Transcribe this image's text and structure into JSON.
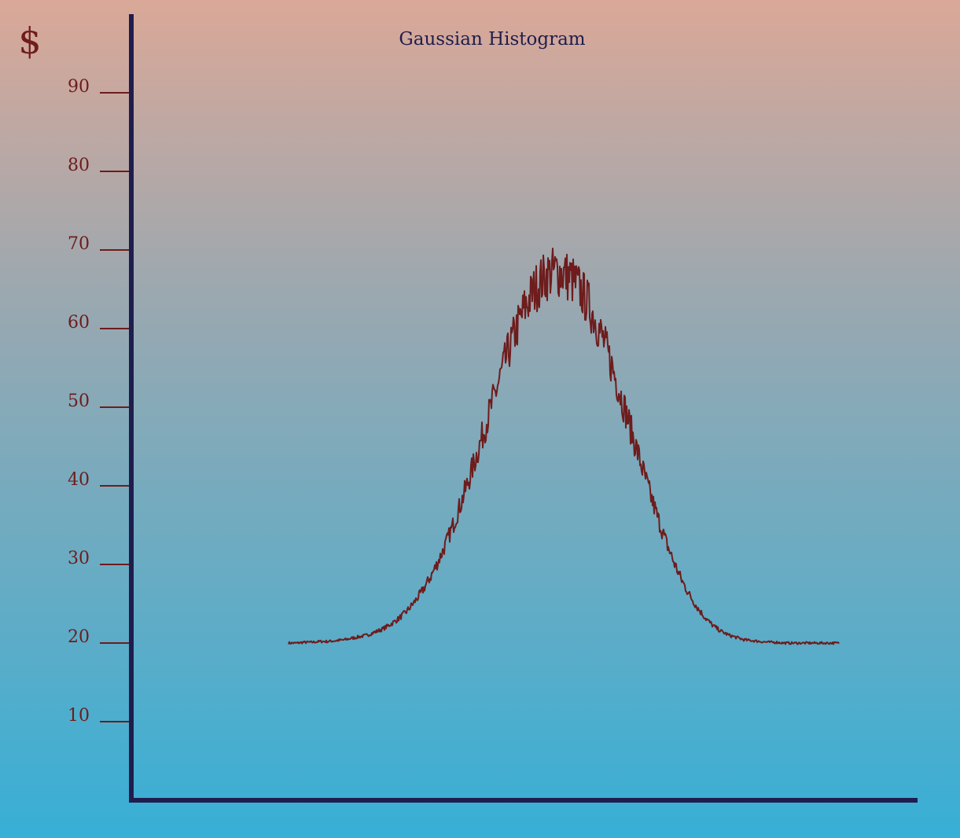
{
  "chart_data": {
    "type": "line",
    "title": "Gaussian Histogram",
    "ylabel": "$",
    "xlabel": "",
    "ylim": [
      0,
      100
    ],
    "yticks": [
      10,
      20,
      30,
      40,
      50,
      60,
      70,
      80,
      90
    ],
    "xlim": [
      0,
      1000
    ],
    "grid": false,
    "legend": "none",
    "series": [
      {
        "baseline": 20,
        "peak": 67,
        "x_range": [
          200,
          900
        ],
        "peak_x": 550,
        "points": [
          [
            200,
            20.0
          ],
          [
            210,
            20.0
          ],
          [
            220,
            20.1
          ],
          [
            230,
            20.1
          ],
          [
            240,
            20.2
          ],
          [
            250,
            20.2
          ],
          [
            260,
            20.3
          ],
          [
            270,
            20.4
          ],
          [
            280,
            20.6
          ],
          [
            290,
            20.8
          ],
          [
            300,
            21.0
          ],
          [
            310,
            21.4
          ],
          [
            320,
            21.8
          ],
          [
            330,
            22.4
          ],
          [
            340,
            23.1
          ],
          [
            350,
            24.0
          ],
          [
            360,
            25.2
          ],
          [
            370,
            26.6
          ],
          [
            380,
            28.3
          ],
          [
            390,
            30.3
          ],
          [
            400,
            32.6
          ],
          [
            410,
            35.2
          ],
          [
            420,
            38.0
          ],
          [
            430,
            41.0
          ],
          [
            440,
            44.2
          ],
          [
            450,
            47.5
          ],
          [
            460,
            50.8
          ],
          [
            470,
            54.1
          ],
          [
            480,
            57.2
          ],
          [
            490,
            60.0
          ],
          [
            500,
            62.5
          ],
          [
            510,
            64.5
          ],
          [
            520,
            66.0
          ],
          [
            530,
            66.9
          ],
          [
            540,
            67.3
          ],
          [
            550,
            67.0
          ],
          [
            560,
            66.3
          ],
          [
            570,
            65.1
          ],
          [
            580,
            63.4
          ],
          [
            590,
            61.2
          ],
          [
            600,
            58.6
          ],
          [
            610,
            55.6
          ],
          [
            620,
            52.4
          ],
          [
            630,
            49.0
          ],
          [
            640,
            45.6
          ],
          [
            650,
            42.2
          ],
          [
            660,
            38.9
          ],
          [
            670,
            35.8
          ],
          [
            680,
            32.9
          ],
          [
            690,
            30.3
          ],
          [
            700,
            28.0
          ],
          [
            710,
            26.1
          ],
          [
            720,
            24.5
          ],
          [
            730,
            23.2
          ],
          [
            740,
            22.2
          ],
          [
            750,
            21.5
          ],
          [
            760,
            21.0
          ],
          [
            770,
            20.7
          ],
          [
            780,
            20.4
          ],
          [
            790,
            20.3
          ],
          [
            800,
            20.2
          ],
          [
            810,
            20.1
          ],
          [
            820,
            20.1
          ],
          [
            830,
            20.0
          ],
          [
            840,
            20.0
          ],
          [
            850,
            20.0
          ],
          [
            860,
            20.0
          ],
          [
            870,
            20.0
          ],
          [
            880,
            20.0
          ],
          [
            890,
            20.0
          ],
          [
            900,
            20.0
          ]
        ]
      }
    ]
  },
  "colors": {
    "background_top": "#daa898",
    "background_mid": "#9ba8b0",
    "background_bottom": "#37afd6",
    "axis": "#1f1d4d",
    "line": "#6e1c1c",
    "tick_label": "#6e1c1c",
    "title": "#1f1d4d"
  }
}
